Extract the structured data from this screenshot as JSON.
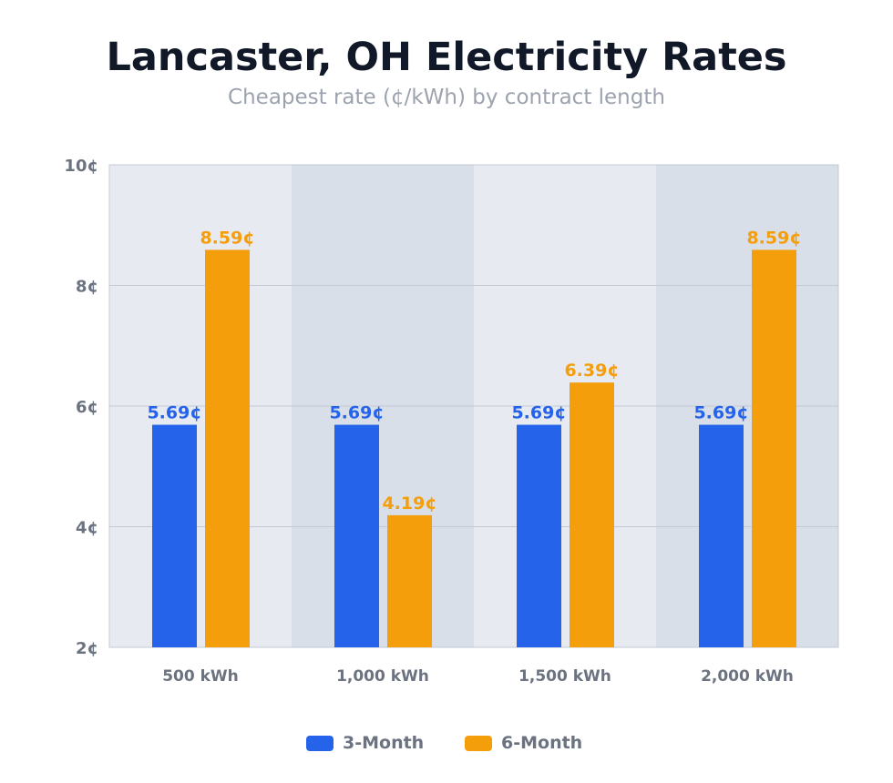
{
  "chart_data": {
    "type": "bar",
    "title": "Lancaster, OH Electricity Rates",
    "subtitle": "Cheapest rate (¢/kWh) by contract length",
    "categories": [
      "500 kWh",
      "1,000 kWh",
      "1,500 kWh",
      "2,000 kWh"
    ],
    "series": [
      {
        "name": "3-Month",
        "values": [
          5.69,
          5.69,
          5.69,
          5.69
        ],
        "color": "#2563eb"
      },
      {
        "name": "6-Month",
        "values": [
          8.59,
          4.19,
          6.39,
          8.59
        ],
        "color": "#f59e0b"
      }
    ],
    "ylim": [
      2,
      10
    ],
    "yticks": [
      "2¢",
      "4¢",
      "6¢",
      "8¢",
      "10¢"
    ],
    "ytick_values": [
      2,
      4,
      6,
      8,
      10
    ],
    "value_suffix": "¢",
    "grid": true,
    "legend": "bottom"
  }
}
